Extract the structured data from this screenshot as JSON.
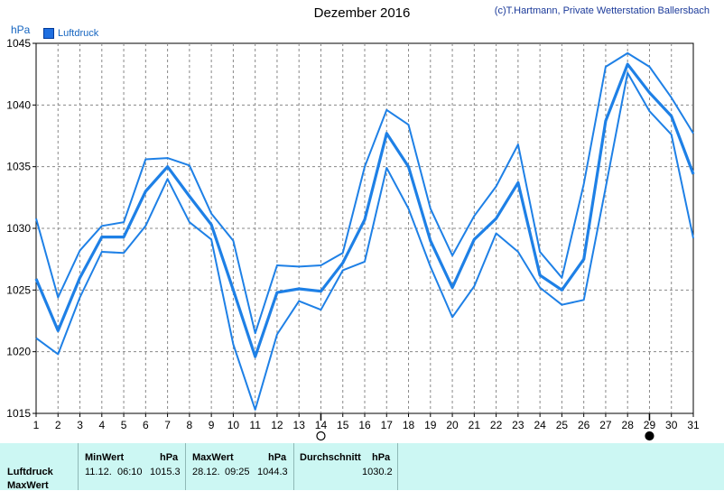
{
  "header": {
    "title": "Dezember 2016",
    "copyright": "(c)T.Hartmann, Private Wetterstation Ballersbach",
    "unit": "hPa",
    "legend": "Luftdruck"
  },
  "colors": {
    "series": "#1e80e6",
    "grid": "#888888",
    "stats_bg": "#ccf7f3"
  },
  "chart_data": {
    "type": "line",
    "title": "Dezember 2016",
    "ylabel": "hPa",
    "ylim": [
      1015,
      1045
    ],
    "yticks": [
      1015,
      1020,
      1025,
      1030,
      1035,
      1040,
      1045
    ],
    "x": [
      1,
      2,
      3,
      4,
      5,
      6,
      7,
      8,
      9,
      10,
      11,
      12,
      13,
      14,
      15,
      16,
      17,
      18,
      19,
      20,
      21,
      22,
      23,
      24,
      25,
      26,
      27,
      28,
      29,
      30,
      31
    ],
    "grid": true,
    "legend_position": "top-left",
    "series": [
      {
        "name": "Luftdruck",
        "values": [
          1025.9,
          1021.7,
          1026.0,
          1029.3,
          1029.3,
          1033.0,
          1035.0,
          1032.6,
          1030.3,
          1025.0,
          1019.6,
          1024.8,
          1025.1,
          1024.9,
          1027.2,
          1030.7,
          1037.7,
          1035.0,
          1029.0,
          1025.2,
          1029.1,
          1030.8,
          1033.7,
          1026.2,
          1025.0,
          1027.5,
          1038.7,
          1043.3,
          1041.0,
          1039.1,
          1034.4
        ]
      },
      {
        "values": [
          1030.8,
          1024.4,
          1028.2,
          1030.2,
          1030.5,
          1035.6,
          1035.7,
          1035.1,
          1031.2,
          1029.0,
          1021.5,
          1027.0,
          1026.9,
          1027.0,
          1028.0,
          1035.0,
          1039.6,
          1038.4,
          1031.6,
          1027.8,
          1031.0,
          1033.4,
          1036.8,
          1028.1,
          1026.0,
          1033.6,
          1043.1,
          1044.2,
          1043.1,
          1040.6,
          1037.7
        ]
      },
      {
        "values": [
          1021.1,
          1019.8,
          1024.4,
          1028.1,
          1028.0,
          1030.2,
          1034.0,
          1030.5,
          1029.1,
          1020.6,
          1015.3,
          1021.4,
          1024.1,
          1023.4,
          1026.6,
          1027.3,
          1034.9,
          1031.6,
          1026.9,
          1022.8,
          1025.3,
          1029.6,
          1028.1,
          1025.2,
          1023.8,
          1024.2,
          1033.3,
          1042.6,
          1039.5,
          1037.6,
          1029.2
        ]
      }
    ],
    "markers": [
      {
        "day": 14,
        "symbol": "new-moon-outline"
      },
      {
        "day": 29,
        "symbol": "full-moon-filled"
      }
    ]
  },
  "stats": {
    "row_labels": [
      "Luftdruck",
      "MaxWert"
    ],
    "min": {
      "header": "MinWert",
      "unit": "hPa",
      "date": "11.12.",
      "time": "06:10",
      "value": "1015.3"
    },
    "max": {
      "header": "MaxWert",
      "unit": "hPa",
      "date": "28.12.",
      "time": "09:25",
      "value": "1044.3"
    },
    "avg": {
      "header": "Durchschnitt",
      "unit": "hPa",
      "value": "1030.2"
    }
  }
}
